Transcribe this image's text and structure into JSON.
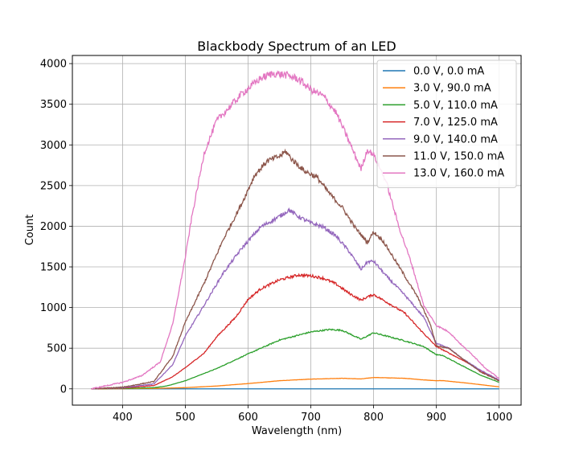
{
  "chart_data": {
    "type": "line",
    "title": "Blackbody Spectrum of an LED",
    "xlabel": "Wavelength (nm)",
    "ylabel": "Count",
    "xlim": [
      320,
      1035
    ],
    "ylim": [
      -200,
      4100
    ],
    "xticks": [
      400,
      500,
      600,
      700,
      800,
      900,
      1000
    ],
    "yticks": [
      0,
      500,
      1000,
      1500,
      2000,
      2500,
      3000,
      3500,
      4000
    ],
    "grid": true,
    "legend_position": "top-right",
    "series": [
      {
        "name": "0.0 V, 0.0 mA",
        "color": "#1f77b4",
        "x": [
          350,
          400,
          450,
          500,
          550,
          600,
          650,
          700,
          750,
          800,
          850,
          900,
          950,
          1000
        ],
        "y": [
          0,
          0,
          0,
          0,
          0,
          0,
          0,
          0,
          0,
          0,
          0,
          0,
          0,
          0
        ]
      },
      {
        "name": "3.0 V, 90.0 mA",
        "color": "#ff7f0e",
        "x": [
          350,
          400,
          450,
          500,
          550,
          600,
          650,
          700,
          750,
          780,
          800,
          850,
          880,
          900,
          910,
          950,
          1000
        ],
        "y": [
          0,
          2,
          5,
          15,
          35,
          65,
          100,
          120,
          130,
          122,
          140,
          130,
          110,
          100,
          102,
          70,
          25
        ]
      },
      {
        "name": "5.0 V, 110.0 mA",
        "color": "#2ca02c",
        "x": [
          350,
          400,
          450,
          470,
          500,
          530,
          550,
          600,
          650,
          700,
          730,
          750,
          780,
          800,
          820,
          850,
          880,
          900,
          910,
          940,
          970,
          1000
        ],
        "y": [
          0,
          5,
          15,
          35,
          100,
          190,
          250,
          430,
          600,
          700,
          730,
          720,
          610,
          690,
          650,
          590,
          520,
          420,
          410,
          290,
          170,
          80
        ]
      },
      {
        "name": "7.0 V, 125.0 mA",
        "color": "#d62728",
        "x": [
          350,
          400,
          450,
          480,
          500,
          530,
          550,
          580,
          600,
          620,
          650,
          680,
          700,
          720,
          740,
          760,
          780,
          790,
          800,
          820,
          850,
          870,
          890,
          900,
          910,
          930,
          950,
          980,
          1000
        ],
        "y": [
          0,
          10,
          40,
          150,
          260,
          440,
          640,
          880,
          1100,
          1230,
          1340,
          1400,
          1390,
          1360,
          1290,
          1180,
          1090,
          1130,
          1160,
          1070,
          930,
          760,
          600,
          520,
          480,
          400,
          320,
          180,
          100
        ]
      },
      {
        "name": "9.0 V, 140.0 mA",
        "color": "#9467bd",
        "x": [
          350,
          400,
          450,
          480,
          500,
          530,
          560,
          590,
          620,
          650,
          665,
          680,
          700,
          720,
          740,
          760,
          780,
          790,
          800,
          820,
          850,
          880,
          900,
          920,
          940,
          970,
          1000
        ],
        "y": [
          0,
          15,
          60,
          300,
          650,
          1030,
          1420,
          1730,
          1990,
          2120,
          2200,
          2120,
          2040,
          1990,
          1880,
          1700,
          1470,
          1560,
          1570,
          1390,
          1150,
          880,
          560,
          500,
          380,
          230,
          110
        ]
      },
      {
        "name": "11.0 V, 150.0 mA",
        "color": "#8c564b",
        "x": [
          350,
          400,
          450,
          480,
          500,
          530,
          560,
          590,
          610,
          630,
          650,
          660,
          670,
          690,
          710,
          730,
          750,
          770,
          790,
          800,
          815,
          840,
          870,
          890,
          900,
          920,
          940,
          970,
          1000
        ],
        "y": [
          0,
          20,
          90,
          400,
          820,
          1300,
          1830,
          2280,
          2620,
          2800,
          2860,
          2920,
          2820,
          2680,
          2600,
          2400,
          2230,
          1990,
          1800,
          1930,
          1820,
          1510,
          1130,
          800,
          530,
          500,
          380,
          210,
          100
        ]
      },
      {
        "name": "13.0 V, 160.0 mA",
        "color": "#e377c2",
        "x": [
          350,
          400,
          430,
          460,
          480,
          500,
          510,
          530,
          550,
          570,
          590,
          620,
          640,
          660,
          680,
          700,
          720,
          740,
          760,
          780,
          790,
          800,
          820,
          840,
          860,
          880,
          900,
          920,
          940,
          960,
          980,
          1000
        ],
        "y": [
          0,
          80,
          160,
          330,
          800,
          1620,
          2100,
          2900,
          3300,
          3460,
          3630,
          3820,
          3880,
          3860,
          3810,
          3680,
          3600,
          3400,
          3060,
          2700,
          2940,
          2880,
          2550,
          2000,
          1550,
          1020,
          780,
          700,
          540,
          400,
          240,
          130
        ]
      }
    ]
  }
}
